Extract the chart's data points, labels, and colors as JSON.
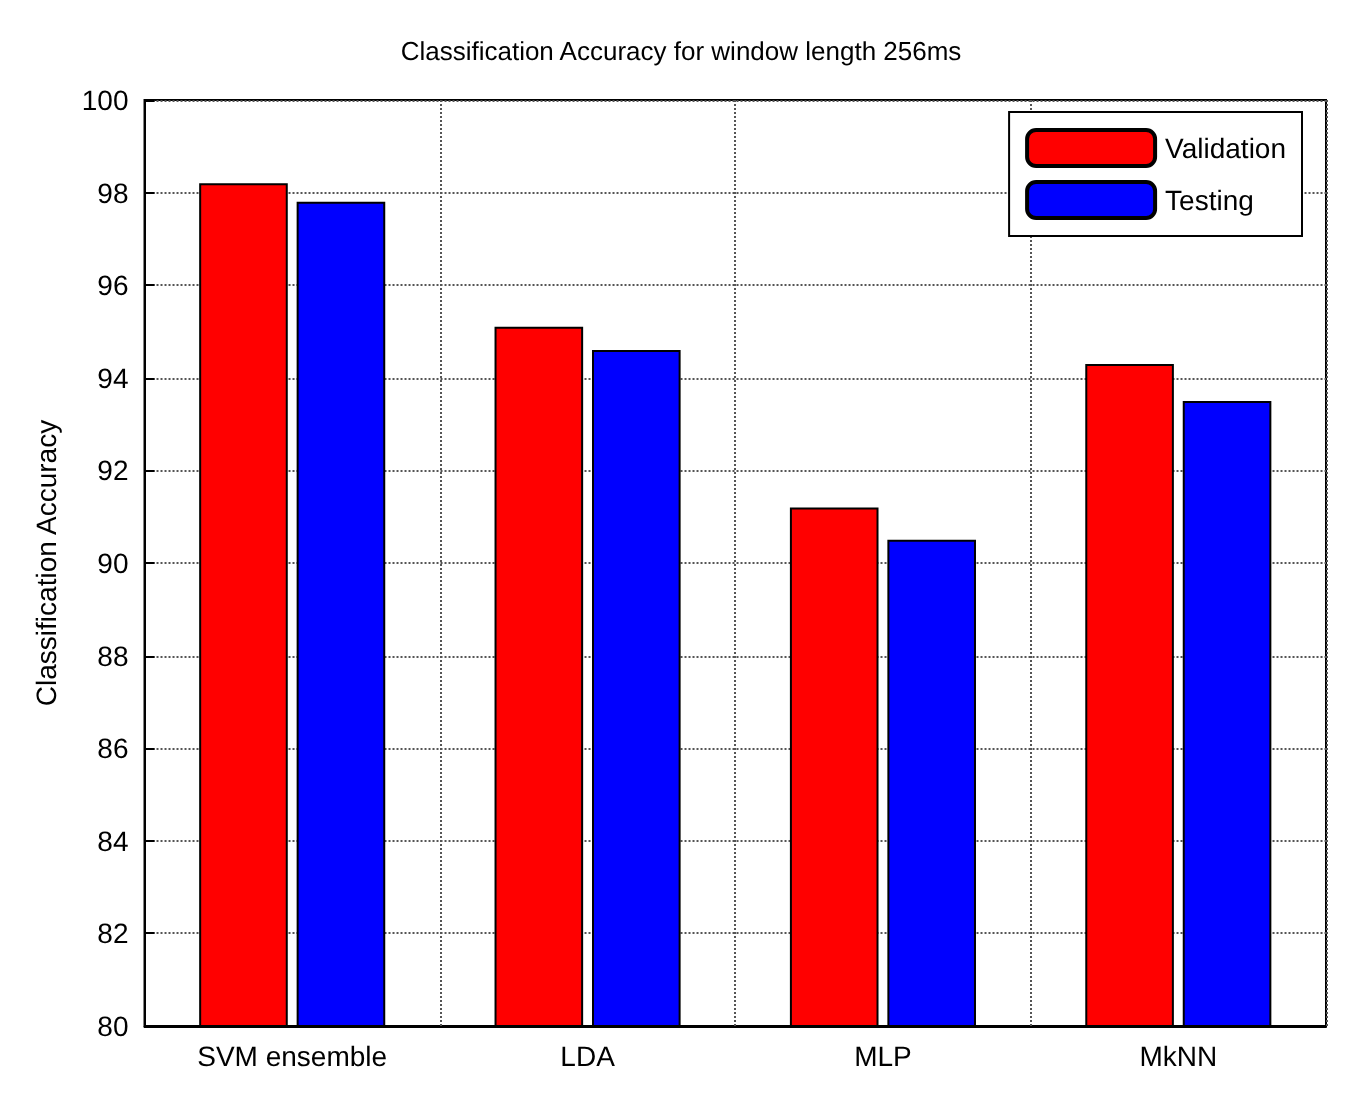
{
  "chart_data": {
    "type": "bar",
    "title": "Classification Accuracy for window length 256ms",
    "ylabel": "Classification Accuracy",
    "categories": [
      "SVM ensemble",
      "LDA",
      "MLP",
      "MkNN"
    ],
    "series": [
      {
        "name": "Validation",
        "color": "#ff0000",
        "values": [
          98.2,
          95.1,
          91.2,
          94.3
        ]
      },
      {
        "name": "Testing",
        "color": "#0000ff",
        "values": [
          97.8,
          94.6,
          90.5,
          93.5
        ]
      }
    ],
    "ylim": [
      80,
      100
    ],
    "yticks": [
      80,
      82,
      84,
      86,
      88,
      90,
      92,
      94,
      96,
      98,
      100
    ],
    "grid": true,
    "legend": "top right"
  }
}
